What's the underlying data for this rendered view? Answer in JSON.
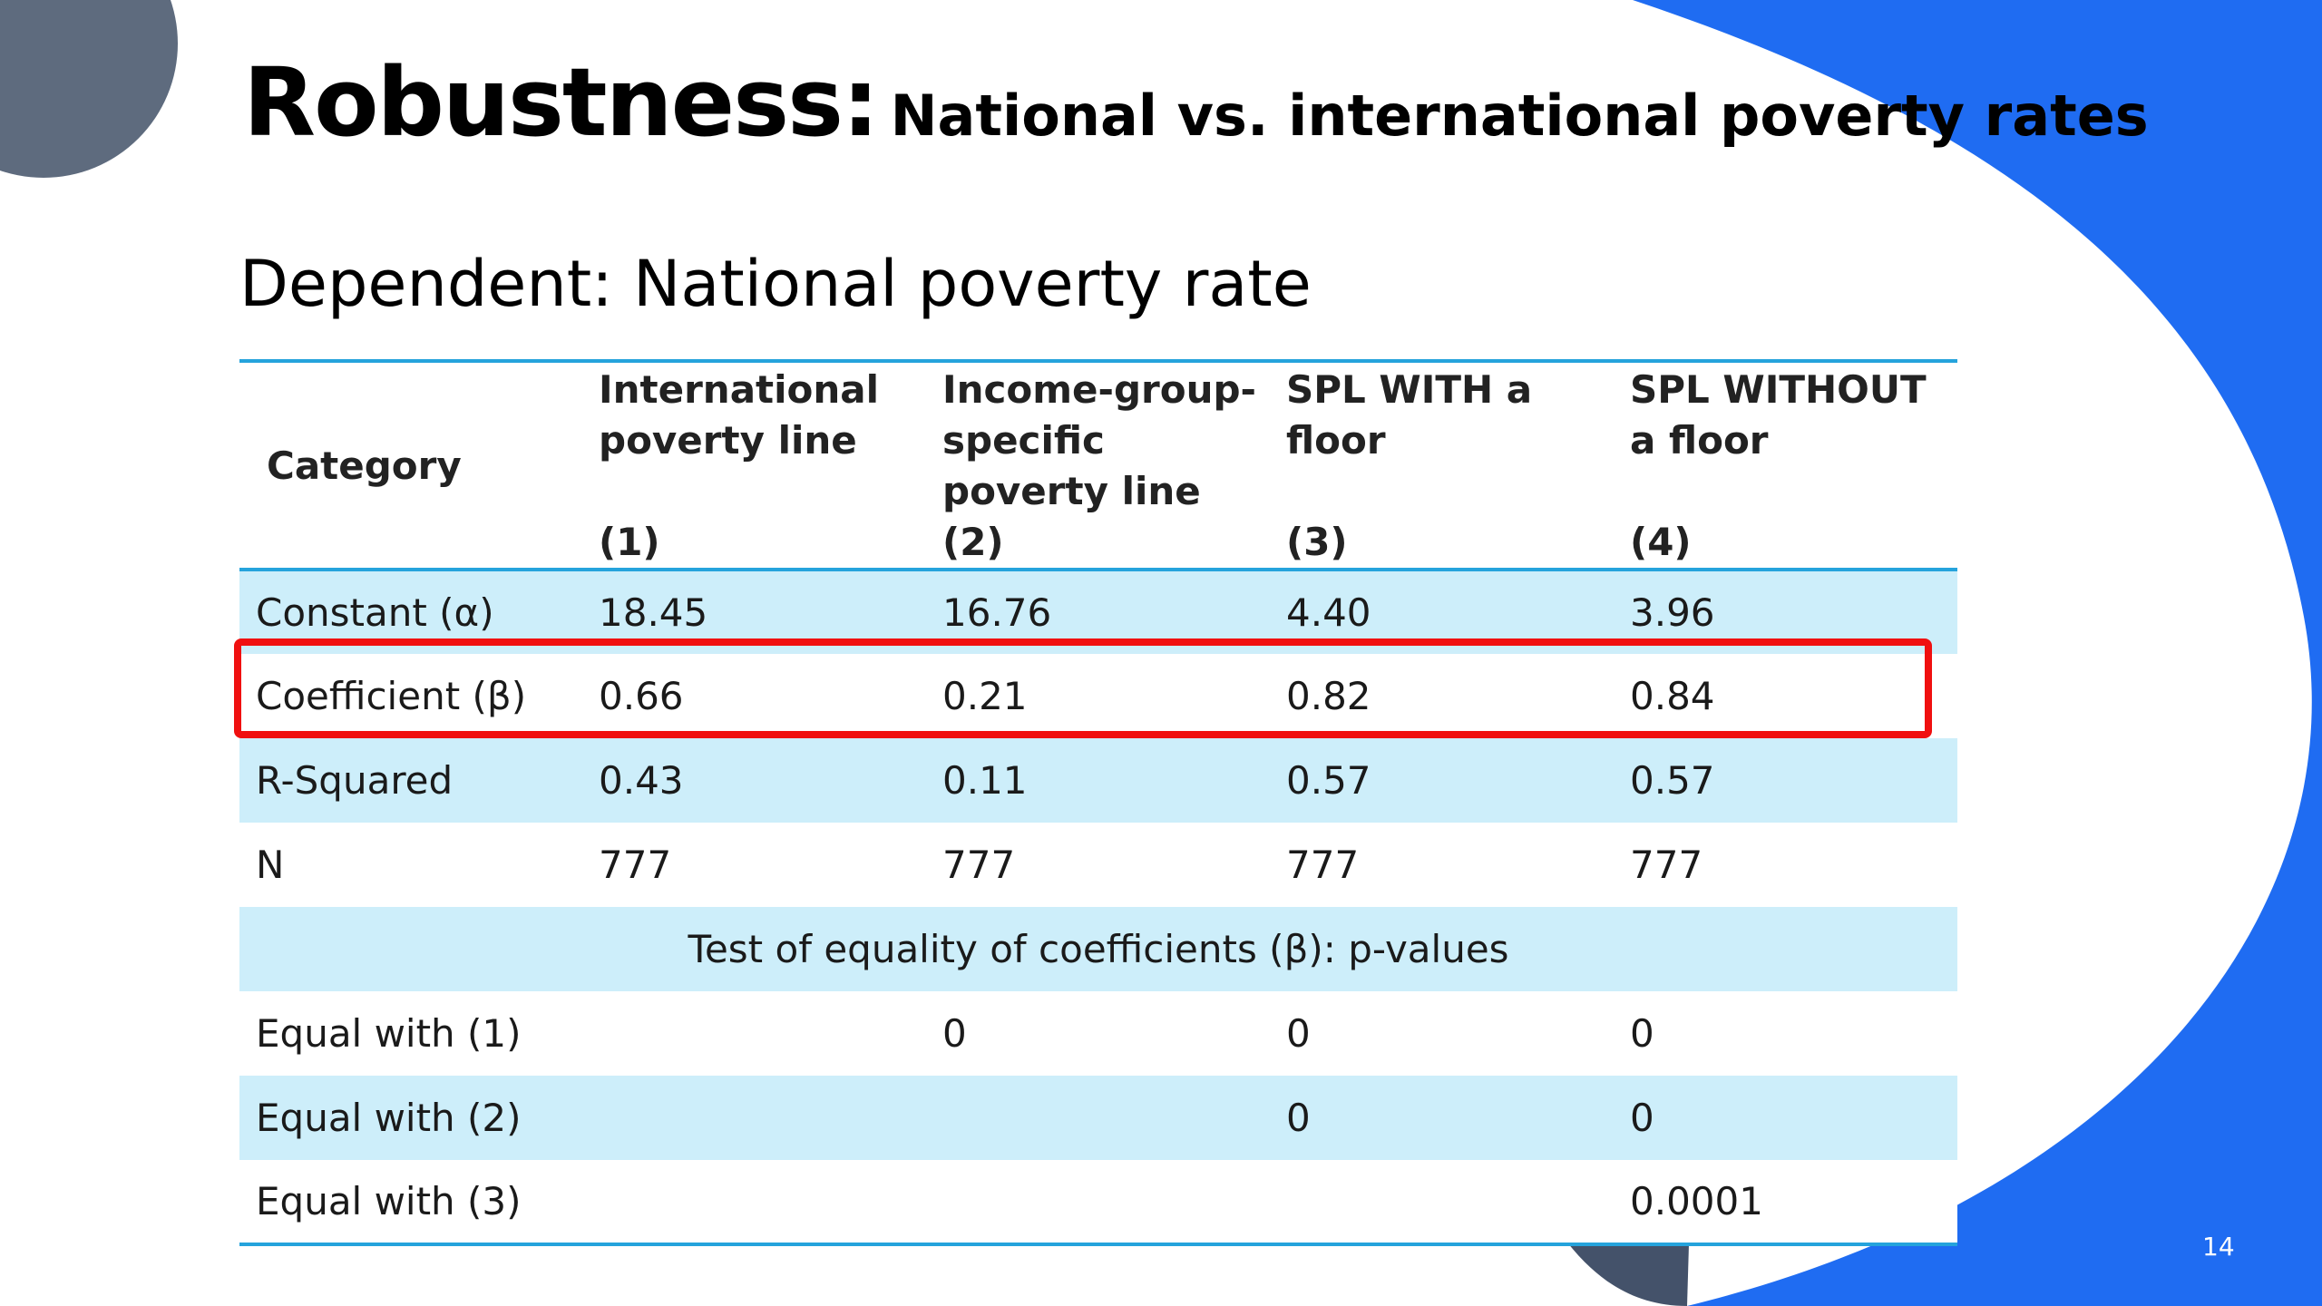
{
  "slide": {
    "title": "Robustness:",
    "title_sub": "National vs. international poverty rates",
    "subtitle": "Dependent: National poverty rate",
    "page_number": "14"
  },
  "table": {
    "header": {
      "category": "Category",
      "cols": [
        {
          "label": "International poverty line",
          "num": "(1)"
        },
        {
          "label": "Income-group-specific poverty line",
          "num": "(2)"
        },
        {
          "label": "SPL WITH a floor",
          "num": "(3)"
        },
        {
          "label": "SPL WITHOUT a floor",
          "num": "(4)"
        }
      ]
    },
    "rows": [
      {
        "label": "Constant (α)",
        "values": [
          "18.45",
          "16.76",
          "4.40",
          "3.96"
        ]
      },
      {
        "label": "Coefficient (β)",
        "values": [
          "0.66",
          "0.21",
          "0.82",
          "0.84"
        ]
      },
      {
        "label": "R-Squared",
        "values": [
          "0.43",
          "0.11",
          "0.57",
          "0.57"
        ]
      },
      {
        "label": "N",
        "values": [
          "777",
          "777",
          "777",
          "777"
        ]
      }
    ],
    "test_header": "Test of equality of coefficients (β): p-values",
    "test_rows": [
      {
        "label": "Equal with (1)",
        "values": [
          "",
          "0",
          "0",
          "0"
        ]
      },
      {
        "label": "Equal with (2)",
        "values": [
          "",
          "",
          "0",
          "0"
        ]
      },
      {
        "label": "Equal with (3)",
        "values": [
          "",
          "",
          "",
          "0.0001"
        ]
      }
    ]
  },
  "colors": {
    "accent_blue": "#1f6cf2",
    "slate": "#5e6b7e",
    "row_shade": "#cdeefa",
    "rule": "#25a3dc",
    "highlight": "#f01010"
  }
}
